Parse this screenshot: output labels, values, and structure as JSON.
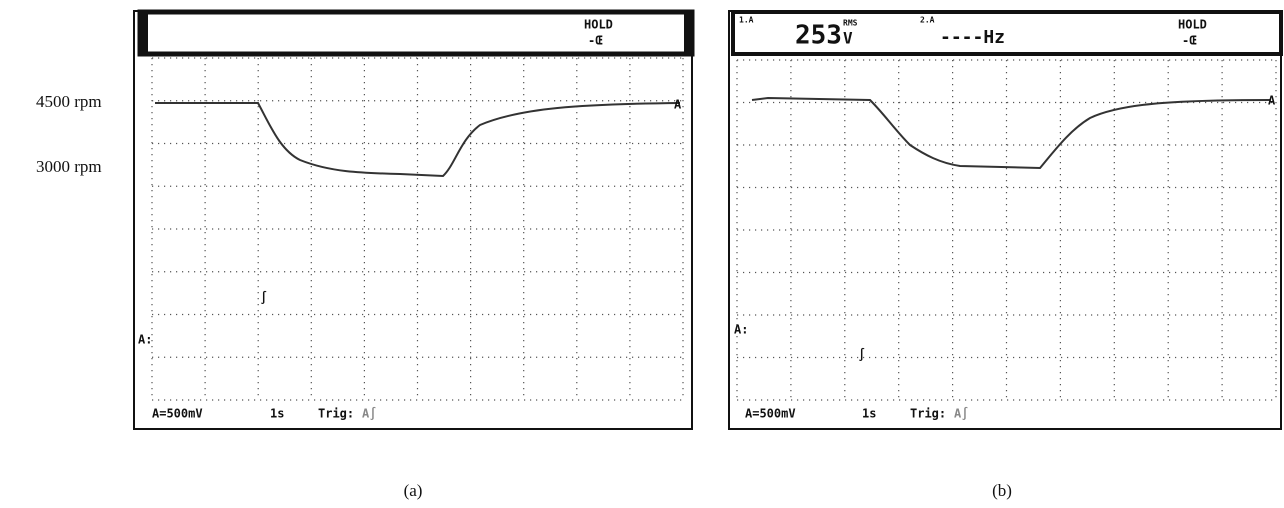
{
  "left_labels": [
    "4500 rpm",
    "3000 rpm"
  ],
  "panels": [
    {
      "caption": "(a)",
      "header": {
        "status": "HOLD"
      },
      "trace_marker": "A",
      "ground_marker": "A:",
      "trigger_marker": "∫",
      "footer": {
        "scale": "A=500mV",
        "time": "1s",
        "trigger": "Trig:",
        "trigger_source": "A∫"
      }
    },
    {
      "caption": "(b)",
      "header": {
        "ch1": "1.A",
        "reading": "253",
        "unit": "V",
        "unit_mode": "RMS",
        "ch2": "2.A",
        "ch2_reading": "----Hz",
        "status": "HOLD"
      },
      "trace_marker": "A",
      "ground_marker": "A:",
      "trigger_marker": "∫",
      "footer": {
        "scale": "A=500mV",
        "time": "1s",
        "trigger": "Trig:",
        "trigger_source": "A∫"
      }
    }
  ]
}
